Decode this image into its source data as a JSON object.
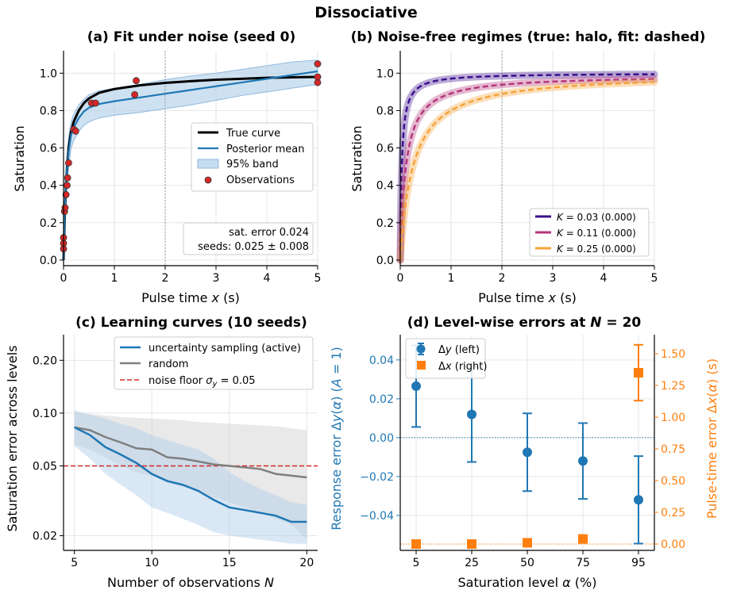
{
  "figure": {
    "suptitle": "Dissociative"
  },
  "colors": {
    "true_curve": "#000000",
    "posterior": "#1f77b4",
    "band": "#aecde8",
    "observation": "#d62728",
    "k1": "#3b0f8c",
    "k2": "#b5367a",
    "k3": "#f6a33a",
    "active": "#1f77b4",
    "random": "#7f7f7f",
    "noise_floor": "#d62728",
    "dy": "#1f77b4",
    "dx": "#ff7f0e"
  },
  "chart_data": [
    {
      "id": "a",
      "type": "line",
      "title": "(a) Fit under noise (seed 0)",
      "xlabel": "Pulse time x (s)",
      "ylabel": "Saturation",
      "xlim": [
        0,
        5
      ],
      "ylim": [
        -0.03,
        1.12
      ],
      "xticks": [
        0,
        1,
        2,
        3,
        4,
        5
      ],
      "yticks": [
        0.0,
        0.2,
        0.4,
        0.6,
        0.8,
        1.0
      ],
      "vline": 2,
      "grid": true,
      "legend_position": "center-right",
      "legend": [
        "True curve",
        "Posterior mean",
        "95% band",
        "Observations"
      ],
      "series": [
        {
          "name": "True curve",
          "x": [
            0,
            0.02,
            0.05,
            0.1,
            0.15,
            0.2,
            0.3,
            0.4,
            0.5,
            0.7,
            1.0,
            1.5,
            2.0,
            2.5,
            3.0,
            3.5,
            4.0,
            4.5,
            5.0
          ],
          "y": [
            0,
            0.2,
            0.42,
            0.6,
            0.69,
            0.74,
            0.8,
            0.84,
            0.865,
            0.895,
            0.915,
            0.935,
            0.948,
            0.957,
            0.965,
            0.97,
            0.975,
            0.978,
            0.98
          ]
        },
        {
          "name": "Posterior mean",
          "x": [
            0,
            0.02,
            0.05,
            0.1,
            0.15,
            0.2,
            0.3,
            0.4,
            0.5,
            0.7,
            1.0,
            1.5,
            2.0,
            2.5,
            3.0,
            3.5,
            4.0,
            4.5,
            5.0
          ],
          "y": [
            0,
            0.22,
            0.43,
            0.58,
            0.67,
            0.71,
            0.76,
            0.795,
            0.815,
            0.835,
            0.85,
            0.87,
            0.89,
            0.91,
            0.93,
            0.95,
            0.97,
            0.99,
            1.01
          ]
        },
        {
          "name": "95% band",
          "x": [
            0,
            0.02,
            0.05,
            0.1,
            0.15,
            0.2,
            0.3,
            0.4,
            0.5,
            0.7,
            1.0,
            1.5,
            2.0,
            2.5,
            3.0,
            3.5,
            4.0,
            4.5,
            5.0
          ],
          "lower": [
            -0.02,
            0.15,
            0.36,
            0.5,
            0.6,
            0.64,
            0.69,
            0.72,
            0.74,
            0.76,
            0.775,
            0.79,
            0.81,
            0.83,
            0.855,
            0.88,
            0.9,
            0.92,
            0.94
          ],
          "upper": [
            0.02,
            0.3,
            0.5,
            0.66,
            0.74,
            0.78,
            0.83,
            0.86,
            0.885,
            0.905,
            0.92,
            0.94,
            0.965,
            0.985,
            1.0,
            1.02,
            1.04,
            1.06,
            1.07
          ]
        },
        {
          "name": "Observations",
          "x": [
            0.0,
            0.0,
            0.0,
            0.02,
            0.03,
            0.05,
            0.07,
            0.08,
            0.1,
            0.2,
            0.24,
            0.55,
            0.63,
            1.4,
            1.43,
            5.0,
            5.0,
            5.0
          ],
          "y": [
            0.06,
            0.09,
            0.12,
            0.26,
            0.28,
            0.35,
            0.4,
            0.44,
            0.52,
            0.7,
            0.69,
            0.84,
            0.84,
            0.885,
            0.96,
            0.95,
            0.98,
            1.05
          ]
        }
      ],
      "annotation": [
        "sat. error 0.024",
        "seeds: 0.025 ± 0.008"
      ]
    },
    {
      "id": "b",
      "type": "line",
      "title": "(b) Noise-free regimes (true: halo, fit: dashed)",
      "xlabel": "Pulse time x (s)",
      "ylabel": "Saturation",
      "xlim": [
        0,
        5
      ],
      "ylim": [
        -0.03,
        1.12
      ],
      "xticks": [
        0,
        1,
        2,
        3,
        4,
        5
      ],
      "yticks": [
        0.0,
        0.2,
        0.4,
        0.6,
        0.8,
        1.0
      ],
      "vline": 2,
      "grid": true,
      "legend_position": "lower-right",
      "series": [
        {
          "name": "K = 0.03 (0.000)",
          "K": 0.03,
          "asymptote": 1.0
        },
        {
          "name": "K = 0.11 (0.000)",
          "K": 0.11,
          "asymptote": 0.99
        },
        {
          "name": "K = 0.25 (0.000)",
          "K": 0.25,
          "asymptote": 1.0
        }
      ]
    },
    {
      "id": "c",
      "type": "line",
      "title": "(c) Learning curves (10 seeds)",
      "xlabel": "Number of observations N",
      "ylabel": "Saturation error across levels",
      "yscale": "log",
      "xlim": [
        4.3,
        20.7
      ],
      "ylim": [
        0.0165,
        0.28
      ],
      "xticks": [
        5,
        10,
        15,
        20
      ],
      "yticks": [
        0.02,
        0.05,
        0.1,
        0.2
      ],
      "yticklabels": [
        "0.02",
        "0.05",
        "0.10",
        "0.20"
      ],
      "hline": 0.05,
      "grid": true,
      "legend_position": "top-right",
      "legend": [
        "uncertainty sampling (active)",
        "random",
        "noise floor σ_y = 0.05"
      ],
      "x": [
        5,
        6,
        7,
        8,
        9,
        10,
        11,
        12,
        13,
        14,
        15,
        16,
        17,
        18,
        19,
        20
      ],
      "series": [
        {
          "name": "uncertainty sampling (active)",
          "values": [
            0.083,
            0.075,
            0.064,
            0.058,
            0.052,
            0.045,
            0.041,
            0.039,
            0.036,
            0.032,
            0.029,
            0.028,
            0.027,
            0.026,
            0.024,
            0.024
          ],
          "lower": [
            0.065,
            0.055,
            0.045,
            0.039,
            0.034,
            0.029,
            0.027,
            0.025,
            0.023,
            0.021,
            0.02,
            0.0195,
            0.019,
            0.0185,
            0.018,
            0.018
          ],
          "upper": [
            0.104,
            0.098,
            0.093,
            0.087,
            0.082,
            0.075,
            0.07,
            0.066,
            0.062,
            0.055,
            0.046,
            0.041,
            0.037,
            0.034,
            0.031,
            0.03
          ]
        },
        {
          "name": "random",
          "values": [
            0.083,
            0.08,
            0.073,
            0.068,
            0.063,
            0.062,
            0.056,
            0.055,
            0.053,
            0.051,
            0.05,
            0.049,
            0.048,
            0.045,
            0.044,
            0.043
          ],
          "lower": [
            0.066,
            0.062,
            0.056,
            0.05,
            0.046,
            0.044,
            0.04,
            0.038,
            0.036,
            0.033,
            0.031,
            0.029,
            0.027,
            0.025,
            0.023,
            0.019
          ],
          "upper": [
            0.1,
            0.099,
            0.097,
            0.095,
            0.094,
            0.093,
            0.092,
            0.091,
            0.089,
            0.088,
            0.087,
            0.086,
            0.085,
            0.084,
            0.082,
            0.08
          ]
        }
      ]
    },
    {
      "id": "d",
      "type": "scatter",
      "title": "(d) Level-wise errors at N = 20",
      "xlabel": "Saturation level α (%)",
      "ylabel_left": "Response error Δy(α)  (A = 1)",
      "ylabel_right": "Pulse-time error Δx(α)  (s)",
      "categories": [
        "5",
        "25",
        "50",
        "75",
        "95"
      ],
      "ylim_left": [
        -0.058,
        0.053
      ],
      "yticks_left": [
        -0.04,
        -0.02,
        0.0,
        0.02,
        0.04
      ],
      "yticklabels_left": [
        "−0.04",
        "−0.02",
        "0.00",
        "0.02",
        "0.04"
      ],
      "ylim_right": [
        -0.05,
        1.65
      ],
      "yticks_right": [
        0.0,
        0.25,
        0.5,
        0.75,
        1.0,
        1.25,
        1.5
      ],
      "yticklabels_right": [
        "0.00",
        "0.25",
        "0.50",
        "0.75",
        "1.00",
        "1.25",
        "1.50"
      ],
      "grid": true,
      "legend_position": "top-left",
      "legend": [
        "Δy (left)",
        "Δx (right)"
      ],
      "series": [
        {
          "name": "Δy (left)",
          "values": [
            0.0265,
            0.012,
            -0.0075,
            -0.012,
            -0.032
          ],
          "err_low": [
            0.0055,
            -0.0125,
            -0.0275,
            -0.0315,
            -0.0545
          ],
          "err_high": [
            0.0475,
            0.0365,
            0.0125,
            0.0075,
            -0.0095
          ]
        },
        {
          "name": "Δx (right)",
          "values": [
            0.0,
            0.0,
            0.01,
            0.04,
            1.35
          ],
          "err_low": [
            null,
            null,
            null,
            null,
            1.13
          ],
          "err_high": [
            null,
            null,
            null,
            null,
            1.57
          ]
        }
      ]
    }
  ]
}
